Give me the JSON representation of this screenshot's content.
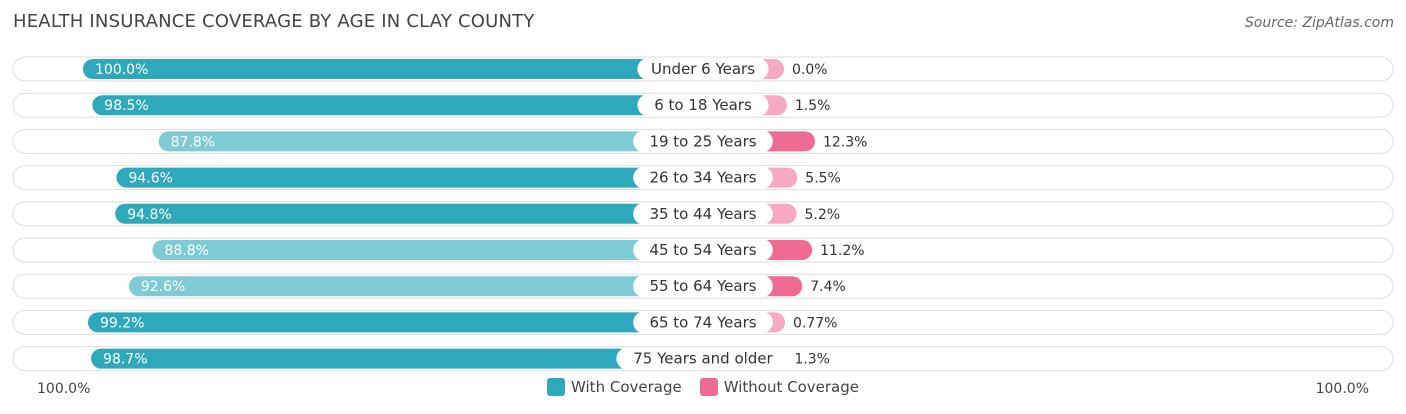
{
  "chart_data": {
    "type": "bar",
    "title": "HEALTH INSURANCE COVERAGE BY AGE IN CLAY COUNTY",
    "source": "Source: ZipAtlas.com",
    "categories": [
      "Under 6 Years",
      "6 to 18 Years",
      "19 to 25 Years",
      "26 to 34 Years",
      "35 to 44 Years",
      "45 to 54 Years",
      "55 to 64 Years",
      "65 to 74 Years",
      "75 Years and older"
    ],
    "series": [
      {
        "name": "With Coverage",
        "values": [
          100.0,
          98.5,
          87.8,
          94.6,
          94.8,
          88.8,
          92.6,
          99.2,
          98.7
        ],
        "labels": [
          "100.0%",
          "98.5%",
          "87.8%",
          "94.6%",
          "94.8%",
          "88.8%",
          "92.6%",
          "99.2%",
          "98.7%"
        ]
      },
      {
        "name": "Without Coverage",
        "values": [
          0.0,
          1.5,
          12.3,
          5.5,
          5.2,
          11.2,
          7.4,
          0.77,
          1.3
        ],
        "labels": [
          "0.0%",
          "1.5%",
          "12.3%",
          "5.5%",
          "5.2%",
          "11.2%",
          "7.4%",
          "0.77%",
          "1.3%"
        ]
      }
    ],
    "axis_left_label": "100.0%",
    "axis_right_label": "100.0%",
    "legend_position": "bottom-center",
    "colors": {
      "with_strong": "#2ea8bb",
      "with_light": "#7fcbd5",
      "without_strong": "#f06b94",
      "without_light": "#f7a9c2",
      "track": "#f1f1f1"
    }
  }
}
